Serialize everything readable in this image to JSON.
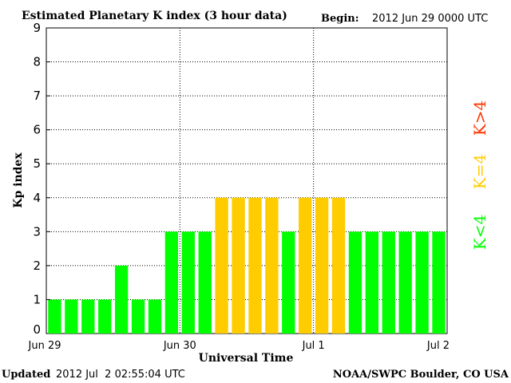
{
  "header": {
    "title": "Estimated Planetary K index (3 hour data)",
    "begin_label": "Begin:",
    "begin_value": "2012 Jun 29 0000 UTC"
  },
  "footer": {
    "updated_label": "Updated",
    "updated_value": "2012 Jul  2 02:55:04 UTC",
    "source": "NOAA/SWPC Boulder, CO USA"
  },
  "legend": {
    "low": "K<4",
    "mid": "K=4",
    "high": "K>4"
  },
  "colors": {
    "low": "#00ff00",
    "mid": "#ffcc00",
    "high": "#ff3300"
  },
  "chart_data": {
    "type": "bar",
    "title": "Estimated Planetary K index (3 hour data)",
    "xlabel": "Universal Time",
    "ylabel": "Kp index",
    "ylim": [
      0,
      9
    ],
    "yticks": [
      "0",
      "1",
      "2",
      "3",
      "4",
      "5",
      "6",
      "7",
      "8",
      "9"
    ],
    "xticks": [
      "Jun 29",
      "Jun 30",
      "Jul 1",
      "Jul 2"
    ],
    "grid": true,
    "categories": [
      "Jun 29 00",
      "Jun 29 03",
      "Jun 29 06",
      "Jun 29 09",
      "Jun 29 12",
      "Jun 29 15",
      "Jun 29 18",
      "Jun 29 21",
      "Jun 30 00",
      "Jun 30 03",
      "Jun 30 06",
      "Jun 30 09",
      "Jun 30 12",
      "Jun 30 15",
      "Jun 30 18",
      "Jun 30 21",
      "Jul 1 00",
      "Jul 1 03",
      "Jul 1 06",
      "Jul 1 09",
      "Jul 1 12",
      "Jul 1 15",
      "Jul 1 18",
      "Jul 1 21"
    ],
    "values": [
      1,
      1,
      1,
      1,
      2,
      1,
      1,
      3,
      3,
      3,
      4,
      4,
      4,
      4,
      3,
      4,
      4,
      4,
      3,
      3,
      3,
      3,
      3,
      3
    ]
  }
}
